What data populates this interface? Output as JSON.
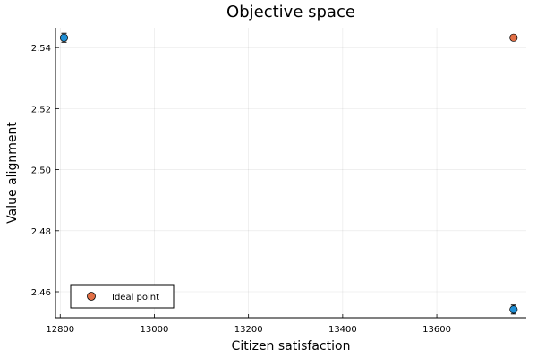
{
  "chart_data": {
    "type": "scatter",
    "title": "Objective space",
    "xlabel": "Citizen satisfaction",
    "ylabel": "Value alignment",
    "xlim": [
      12790,
      13790
    ],
    "ylim": [
      2.4515,
      2.5465
    ],
    "x_ticks": [
      12800,
      13000,
      13200,
      13400,
      13600
    ],
    "x_tick_labels": [
      "12800",
      "13000",
      "13200",
      "13400",
      "13600"
    ],
    "y_ticks": [
      2.46,
      2.48,
      2.5,
      2.52,
      2.54
    ],
    "y_tick_labels": [
      "2.46",
      "2.48",
      "2.50",
      "2.52",
      "2.54"
    ],
    "grid": true,
    "legend_position": "bottom-left",
    "series": [
      {
        "color": "#1f8fd6",
        "points": [
          {
            "x": 12808,
            "y": 2.5432
          },
          {
            "x": 13763,
            "y": 2.4542
          }
        ],
        "error_bars": true
      },
      {
        "name": "Ideal point",
        "color": "#e26f46",
        "points": [
          {
            "x": 13763,
            "y": 2.5432
          }
        ]
      }
    ]
  }
}
